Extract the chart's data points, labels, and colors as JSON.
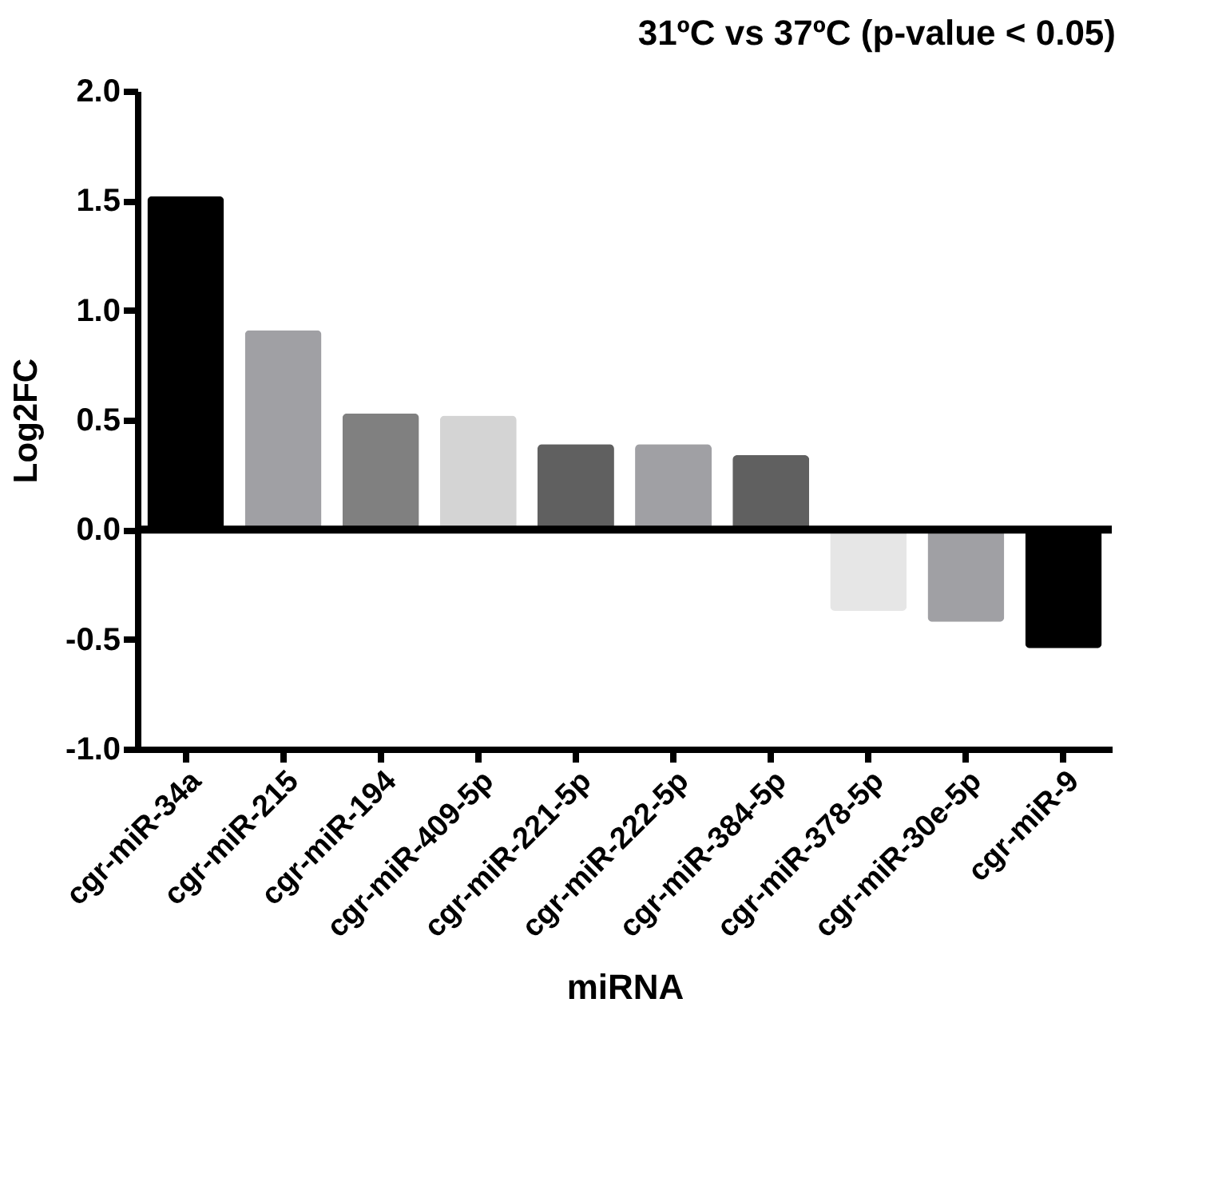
{
  "chart_data": {
    "type": "bar",
    "title": "31ºC vs 37ºC (p-value < 0.05)",
    "xlabel": "miRNA",
    "ylabel": "Log2FC",
    "categories": [
      "cgr-miR-34a",
      "cgr-miR-215",
      "cgr-miR-194",
      "cgr-miR-409-5p",
      "cgr-miR-221-5p",
      "cgr-miR-222-5p",
      "cgr-miR-384-5p",
      "cgr-miR-378-5p",
      "cgr-miR-30e-5p",
      "cgr-miR-9"
    ],
    "values": [
      1.52,
      0.91,
      0.53,
      0.52,
      0.39,
      0.39,
      0.34,
      -0.37,
      -0.42,
      -0.54
    ],
    "colors": [
      "#000000",
      "#a0a0a4",
      "#808080",
      "#d4d4d4",
      "#606060",
      "#a0a0a4",
      "#606060",
      "#e6e6e6",
      "#a0a0a4",
      "#000000"
    ],
    "ylim": [
      -1.0,
      2.0
    ],
    "yticks": [
      {
        "value": -1.0,
        "label": "-1.0"
      },
      {
        "value": -0.5,
        "label": "-0.5"
      },
      {
        "value": 0,
        "label": "0.0"
      },
      0.5,
      {
        "value": 1.0,
        "label": "1.0"
      },
      1.5,
      {
        "value": 2.0,
        "label": "2.0"
      }
    ],
    "ref_lines": [
      {
        "axis": "y",
        "value": 0,
        "color": "#000000"
      }
    ],
    "grid": false
  }
}
